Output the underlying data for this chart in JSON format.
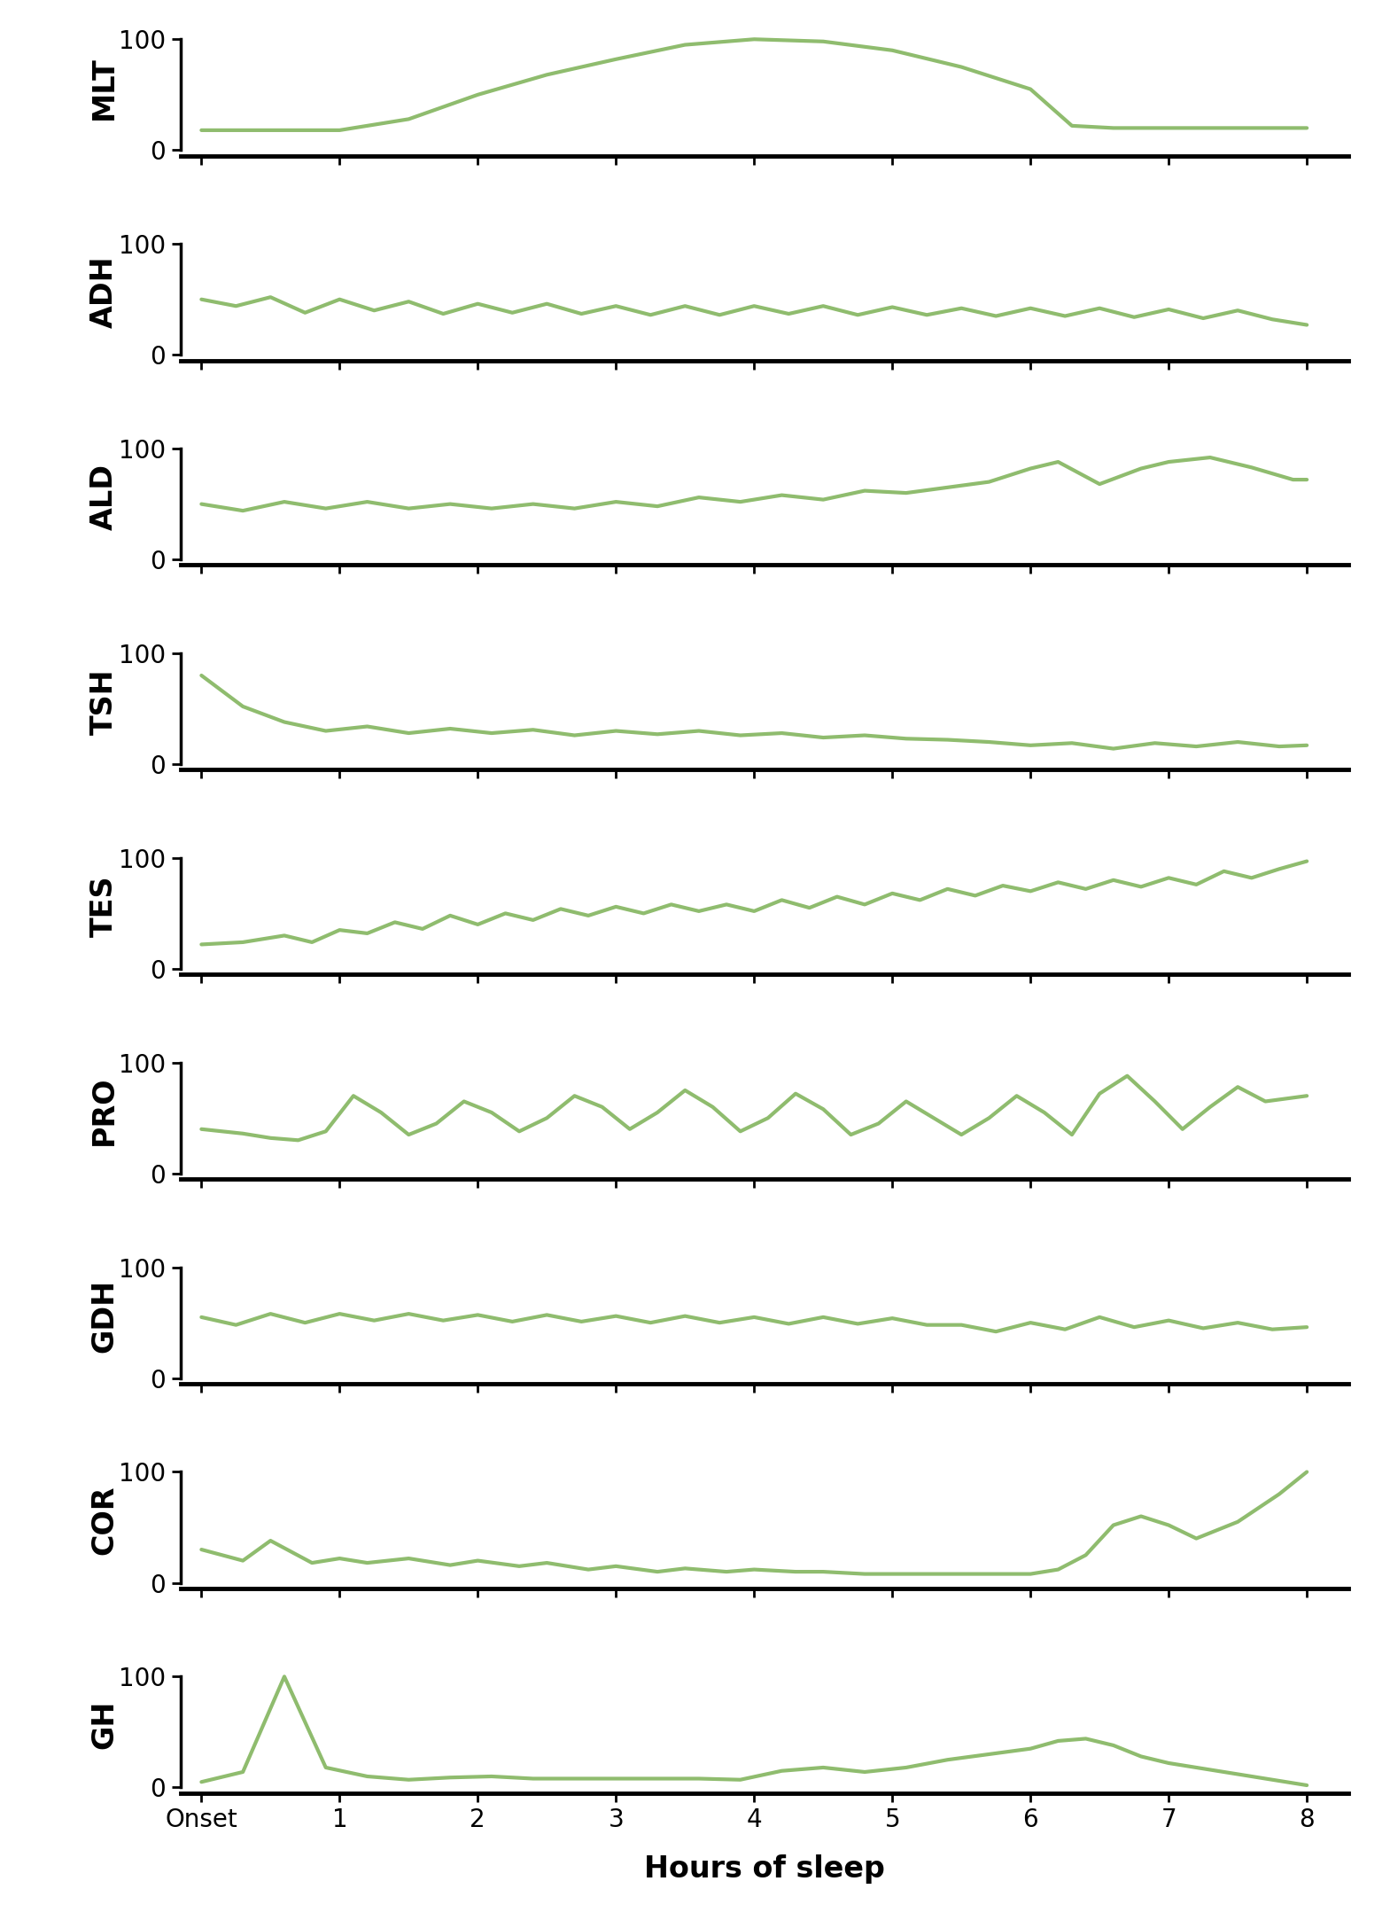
{
  "panels": [
    "MLT",
    "ADH",
    "ALD",
    "TSH",
    "TES",
    "PRO",
    "GDH",
    "COR",
    "GH"
  ],
  "line_color": "#8fbc6e",
  "line_width": 3.0,
  "xlabel": "Hours of sleep",
  "xtick_labels": [
    "Onset",
    "1",
    "2",
    "3",
    "4",
    "5",
    "6",
    "7",
    "8"
  ],
  "yticks": [
    0,
    100
  ],
  "ylim": [
    -5,
    118
  ],
  "background_color": "#ffffff",
  "curves": {
    "MLT": {
      "x": [
        0,
        0.5,
        1.0,
        1.5,
        2.0,
        2.5,
        3.0,
        3.5,
        4.0,
        4.5,
        5.0,
        5.5,
        6.0,
        6.3,
        6.6,
        7.0,
        7.5,
        8.0
      ],
      "y": [
        18,
        18,
        18,
        28,
        50,
        68,
        82,
        95,
        100,
        98,
        90,
        75,
        55,
        22,
        20,
        20,
        20,
        20
      ]
    },
    "ADH": {
      "x": [
        0,
        0.25,
        0.5,
        0.75,
        1.0,
        1.25,
        1.5,
        1.75,
        2.0,
        2.25,
        2.5,
        2.75,
        3.0,
        3.25,
        3.5,
        3.75,
        4.0,
        4.25,
        4.5,
        4.75,
        5.0,
        5.25,
        5.5,
        5.75,
        6.0,
        6.25,
        6.5,
        6.75,
        7.0,
        7.25,
        7.5,
        7.75,
        8.0
      ],
      "y": [
        50,
        44,
        52,
        38,
        50,
        40,
        48,
        37,
        46,
        38,
        46,
        37,
        44,
        36,
        44,
        36,
        44,
        37,
        44,
        36,
        43,
        36,
        42,
        35,
        42,
        35,
        42,
        34,
        41,
        33,
        40,
        32,
        27
      ]
    },
    "ALD": {
      "x": [
        0,
        0.3,
        0.6,
        0.9,
        1.2,
        1.5,
        1.8,
        2.1,
        2.4,
        2.7,
        3.0,
        3.3,
        3.6,
        3.9,
        4.2,
        4.5,
        4.8,
        5.1,
        5.4,
        5.7,
        6.0,
        6.2,
        6.5,
        6.8,
        7.0,
        7.3,
        7.6,
        7.9,
        8.0
      ],
      "y": [
        50,
        44,
        52,
        46,
        52,
        46,
        50,
        46,
        50,
        46,
        52,
        48,
        56,
        52,
        58,
        54,
        62,
        60,
        65,
        70,
        82,
        88,
        68,
        82,
        88,
        92,
        83,
        72,
        72
      ]
    },
    "TSH": {
      "x": [
        0,
        0.3,
        0.6,
        0.9,
        1.2,
        1.5,
        1.8,
        2.1,
        2.4,
        2.7,
        3.0,
        3.3,
        3.6,
        3.9,
        4.2,
        4.5,
        4.8,
        5.1,
        5.4,
        5.7,
        6.0,
        6.3,
        6.6,
        6.9,
        7.2,
        7.5,
        7.8,
        8.0
      ],
      "y": [
        80,
        52,
        38,
        30,
        34,
        28,
        32,
        28,
        31,
        26,
        30,
        27,
        30,
        26,
        28,
        24,
        26,
        23,
        22,
        20,
        17,
        19,
        14,
        19,
        16,
        20,
        16,
        17
      ]
    },
    "TES": {
      "x": [
        0,
        0.3,
        0.6,
        0.8,
        1.0,
        1.2,
        1.4,
        1.6,
        1.8,
        2.0,
        2.2,
        2.4,
        2.6,
        2.8,
        3.0,
        3.2,
        3.4,
        3.6,
        3.8,
        4.0,
        4.2,
        4.4,
        4.6,
        4.8,
        5.0,
        5.2,
        5.4,
        5.6,
        5.8,
        6.0,
        6.2,
        6.4,
        6.6,
        6.8,
        7.0,
        7.2,
        7.4,
        7.6,
        7.8,
        8.0
      ],
      "y": [
        22,
        24,
        30,
        24,
        35,
        32,
        42,
        36,
        48,
        40,
        50,
        44,
        54,
        48,
        56,
        50,
        58,
        52,
        58,
        52,
        62,
        55,
        65,
        58,
        68,
        62,
        72,
        66,
        75,
        70,
        78,
        72,
        80,
        74,
        82,
        76,
        88,
        82,
        90,
        97
      ]
    },
    "PRO": {
      "x": [
        0,
        0.3,
        0.5,
        0.7,
        0.9,
        1.1,
        1.3,
        1.5,
        1.7,
        1.9,
        2.1,
        2.3,
        2.5,
        2.7,
        2.9,
        3.1,
        3.3,
        3.5,
        3.7,
        3.9,
        4.1,
        4.3,
        4.5,
        4.7,
        4.9,
        5.1,
        5.3,
        5.5,
        5.7,
        5.9,
        6.1,
        6.3,
        6.5,
        6.7,
        6.9,
        7.1,
        7.3,
        7.5,
        7.7,
        8.0
      ],
      "y": [
        40,
        36,
        32,
        30,
        38,
        70,
        55,
        35,
        45,
        65,
        55,
        38,
        50,
        70,
        60,
        40,
        55,
        75,
        60,
        38,
        50,
        72,
        58,
        35,
        45,
        65,
        50,
        35,
        50,
        70,
        55,
        35,
        72,
        88,
        65,
        40,
        60,
        78,
        65,
        70
      ]
    },
    "GDH": {
      "x": [
        0,
        0.25,
        0.5,
        0.75,
        1.0,
        1.25,
        1.5,
        1.75,
        2.0,
        2.25,
        2.5,
        2.75,
        3.0,
        3.25,
        3.5,
        3.75,
        4.0,
        4.25,
        4.5,
        4.75,
        5.0,
        5.25,
        5.5,
        5.75,
        6.0,
        6.25,
        6.5,
        6.75,
        7.0,
        7.25,
        7.5,
        7.75,
        8.0
      ],
      "y": [
        55,
        48,
        58,
        50,
        58,
        52,
        58,
        52,
        57,
        51,
        57,
        51,
        56,
        50,
        56,
        50,
        55,
        49,
        55,
        49,
        54,
        48,
        48,
        42,
        50,
        44,
        55,
        46,
        52,
        45,
        50,
        44,
        46
      ]
    },
    "COR": {
      "x": [
        0,
        0.3,
        0.5,
        0.8,
        1.0,
        1.2,
        1.5,
        1.8,
        2.0,
        2.3,
        2.5,
        2.8,
        3.0,
        3.3,
        3.5,
        3.8,
        4.0,
        4.3,
        4.5,
        4.8,
        5.0,
        5.3,
        5.5,
        5.8,
        6.0,
        6.2,
        6.4,
        6.6,
        6.8,
        7.0,
        7.2,
        7.5,
        7.8,
        8.0
      ],
      "y": [
        30,
        20,
        38,
        18,
        22,
        18,
        22,
        16,
        20,
        15,
        18,
        12,
        15,
        10,
        13,
        10,
        12,
        10,
        10,
        8,
        8,
        8,
        8,
        8,
        8,
        12,
        25,
        52,
        60,
        52,
        40,
        55,
        80,
        100
      ]
    },
    "GH": {
      "x": [
        0,
        0.3,
        0.6,
        0.9,
        1.2,
        1.5,
        1.8,
        2.1,
        2.4,
        2.7,
        3.0,
        3.3,
        3.6,
        3.9,
        4.2,
        4.5,
        4.8,
        5.1,
        5.4,
        5.7,
        6.0,
        6.2,
        6.4,
        6.6,
        6.8,
        7.0,
        7.2,
        7.5,
        7.8,
        8.0
      ],
      "y": [
        5,
        14,
        100,
        18,
        10,
        7,
        9,
        10,
        8,
        8,
        8,
        8,
        8,
        7,
        15,
        18,
        14,
        18,
        25,
        30,
        35,
        42,
        44,
        38,
        28,
        22,
        18,
        12,
        6,
        2
      ]
    }
  }
}
